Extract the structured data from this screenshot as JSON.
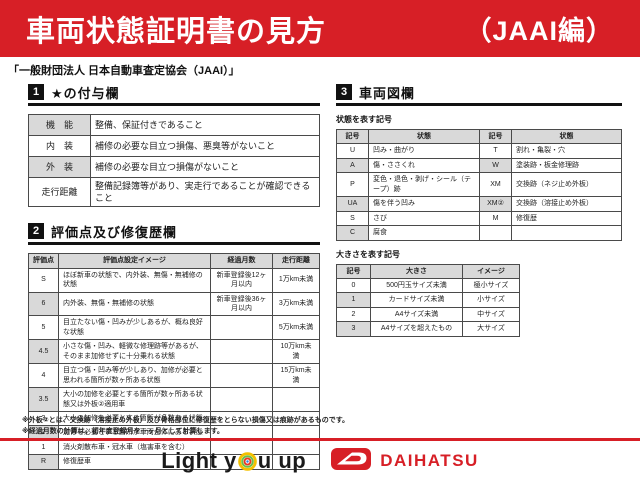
{
  "banner": {
    "title": "車両状態証明書の見方",
    "edition": "（JAAI編）"
  },
  "subtitle": "「一般財団法人 日本自動車査定協会（JAAI）」",
  "section1": {
    "number": "1",
    "title": "★の付与欄",
    "rows": [
      [
        "機　能",
        "整備、保証付きであること"
      ],
      [
        "内　装",
        "補修の必要な目立つ損傷、悪臭等がないこと"
      ],
      [
        "外　装",
        "補修の必要な目立つ損傷がないこと"
      ],
      [
        "走行距離",
        "整備記録簿等があり、実走行であることが確認できること"
      ]
    ]
  },
  "section2": {
    "number": "2",
    "title": "評価点及び修復歴欄",
    "headers": [
      "評価点",
      "評価点設定イメージ",
      "経過月数",
      "走行距離"
    ],
    "rows": [
      [
        "S",
        "ほぼ新車の状態で、内外装、無傷・無補修の状態",
        "新車登録後12ヶ月以内",
        "1万km未満"
      ],
      [
        "6",
        "内外装、無傷・無補修の状態",
        "新車登録後36ヶ月以内",
        "3万km未満"
      ],
      [
        "5",
        "目立たない傷・凹みが少しあるが、概ね良好な状態",
        "",
        "5万km未満"
      ],
      [
        "4.5",
        "小さな傷・凹み、軽微な修理跡等があるが、そのまま加修せずに十分乗れる状態",
        "",
        "10万km未満"
      ],
      [
        "4",
        "目立つ傷・凹み等が少しあり、加修が必要と思われる箇所が数ヶ所ある状態",
        "",
        "15万km未満"
      ],
      [
        "3.5",
        "大小の加修を必要とする箇所が数ヶ所ある状態又は外板②適用車",
        "",
        ""
      ],
      [
        "3",
        "大小の加修を必要とする箇所が多数ある状態",
        "",
        ""
      ],
      [
        "2",
        "加修を必要とする箇所が車両全体にある状態",
        "",
        ""
      ],
      [
        "1",
        "消火剤散布車・冠水車（塩害車を含む）",
        "",
        ""
      ],
      [
        "R",
        "修復歴車",
        "",
        ""
      ]
    ]
  },
  "section3": {
    "number": "3",
    "title": "車両図欄",
    "state_table": {
      "caption": "状態を表す記号",
      "headers": [
        "記号",
        "状態",
        "記号",
        "状態"
      ],
      "rows": [
        [
          "U",
          "凹み・曲がり",
          "T",
          "割れ・亀裂・穴"
        ],
        [
          "A",
          "傷・ささくれ",
          "W",
          "塗装跡・板金修理跡"
        ],
        [
          "P",
          "変色・退色・剥げ・シール（テープ）跡",
          "XM",
          "交換跡（ネジ止め外板）"
        ],
        [
          "UA",
          "傷を伴う凹み",
          "XM②",
          "交換跡（溶接止め外板）"
        ],
        [
          "S",
          "さび",
          "M",
          "修復歴"
        ],
        [
          "C",
          "腐食",
          "",
          ""
        ]
      ]
    },
    "size_table": {
      "caption": "大きさを表す記号",
      "headers": [
        "記号",
        "大きさ",
        "イメージ"
      ],
      "rows": [
        [
          "0",
          "500円玉サイズ未満",
          "極小サイズ"
        ],
        [
          "1",
          "カードサイズ未満",
          "小サイズ"
        ],
        [
          "2",
          "A4サイズ未満",
          "中サイズ"
        ],
        [
          "3",
          "A4サイズを超えたもの",
          "大サイズ"
        ]
      ]
    }
  },
  "notes": [
    "※外板②とは、交換跡（溶接止め外板）及び骨格部位に修復歴をとらない損傷又は痕跡があるものです。",
    "※経過月数の計算は、初年度登録月を一ヶ月として計算します。"
  ],
  "footer": {
    "slogan_left": "Light y",
    "slogan_right": "u up",
    "brand": "DAIHATSU"
  },
  "colors": {
    "banner_red": "#d71f26",
    "table_header_gray": "#d9d9d9",
    "brand_red": "#d71f26",
    "badge_black": "#111111"
  }
}
